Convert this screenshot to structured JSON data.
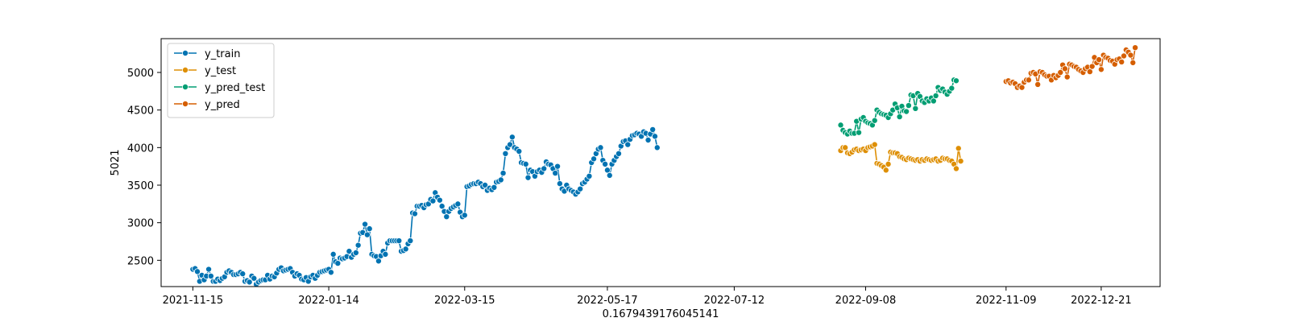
{
  "chart_data": {
    "type": "line",
    "xlabel": "0.1679439176045141",
    "ylabel": "5021",
    "x_axis": "date",
    "xlim": [
      "2021-11-01",
      "2023-01-16"
    ],
    "ylim": [
      2150,
      5450
    ],
    "xticks": [
      "2021-11-15",
      "2022-01-14",
      "2022-03-15",
      "2022-05-17",
      "2022-07-12",
      "2022-09-08",
      "2022-11-09",
      "2022-12-21"
    ],
    "yticks": [
      2500,
      3000,
      3500,
      4000,
      4500,
      5000
    ],
    "grid": false,
    "legend_position": "top-left",
    "series": [
      {
        "name": "y_train",
        "color": "#0173b2",
        "start": "2021-11-15",
        "values": [
          2380,
          2390,
          2350,
          2220,
          2300,
          2240,
          2290,
          2380,
          2290,
          2220,
          2220,
          2250,
          2230,
          2260,
          2280,
          2340,
          2360,
          2340,
          2310,
          2310,
          2320,
          2340,
          2320,
          2220,
          2230,
          2210,
          2290,
          2260,
          2180,
          2210,
          2230,
          2240,
          2240,
          2300,
          2250,
          2290,
          2280,
          2330,
          2380,
          2400,
          2360,
          2370,
          2380,
          2390,
          2340,
          2290,
          2320,
          2300,
          2250,
          2240,
          2270,
          2220,
          2280,
          2300,
          2260,
          2300,
          2340,
          2350,
          2360,
          2370,
          2380,
          2340,
          2580,
          2480,
          2460,
          2530,
          2520,
          2530,
          2550,
          2620,
          2540,
          2580,
          2600,
          2700,
          2860,
          2870,
          2980,
          2840,
          2920,
          2580,
          2560,
          2550,
          2490,
          2560,
          2620,
          2580,
          2730,
          2760,
          2760,
          2760,
          2760,
          2760,
          2620,
          2630,
          2650,
          2720,
          2760,
          3130,
          3120,
          3220,
          3220,
          3230,
          3200,
          3240,
          3250,
          3310,
          3290,
          3400,
          3340,
          3300,
          3220,
          3150,
          3080,
          3150,
          3190,
          3210,
          3230,
          3250,
          3140,
          3080,
          3100,
          3480,
          3490,
          3510,
          3520,
          3520,
          3540,
          3520,
          3480,
          3500,
          3430,
          3460,
          3440,
          3470,
          3540,
          3550,
          3570,
          3660,
          3920,
          4000,
          4040,
          4140,
          4000,
          3980,
          3950,
          3800,
          3790,
          3780,
          3600,
          3700,
          3680,
          3620,
          3680,
          3700,
          3670,
          3720,
          3810,
          3780,
          3770,
          3720,
          3660,
          3750,
          3520,
          3450,
          3420,
          3500,
          3450,
          3430,
          3410,
          3380,
          3410,
          3450,
          3520,
          3540,
          3580,
          3620,
          3800,
          3850,
          3920,
          3980,
          4000,
          3830,
          3780,
          3700,
          3630,
          3780,
          3830,
          3880,
          3920,
          4020,
          4080,
          4090,
          4040,
          4110,
          4160,
          4170,
          4190,
          4180,
          4150,
          4210,
          4190,
          4100,
          4180,
          4240,
          4150,
          4000
        ]
      },
      {
        "name": "y_test",
        "color": "#de8f05",
        "start": "2022-08-28",
        "values": [
          3960,
          4000,
          4000,
          3930,
          3920,
          3940,
          3970,
          3980,
          3960,
          3970,
          3980,
          3960,
          4000,
          4010,
          4020,
          4040,
          3790,
          3780,
          3760,
          3740,
          3700,
          3780,
          3940,
          3930,
          3930,
          3920,
          3880,
          3870,
          3850,
          3840,
          3860,
          3850,
          3840,
          3830,
          3840,
          3820,
          3840,
          3830,
          3850,
          3840,
          3830,
          3840,
          3850,
          3820,
          3830,
          3860,
          3850,
          3850,
          3830,
          3820,
          3780,
          3720,
          3990,
          3820
        ]
      },
      {
        "name": "y_pred_test",
        "color": "#029e73",
        "start": "2022-08-28",
        "values": [
          4300,
          4230,
          4200,
          4180,
          4220,
          4190,
          4190,
          4350,
          4200,
          4380,
          4400,
          4350,
          4330,
          4320,
          4300,
          4360,
          4500,
          4470,
          4450,
          4440,
          4430,
          4400,
          4450,
          4500,
          4580,
          4530,
          4410,
          4550,
          4490,
          4480,
          4560,
          4700,
          4690,
          4520,
          4720,
          4680,
          4620,
          4600,
          4650,
          4620,
          4660,
          4620,
          4690,
          4800,
          4760,
          4780,
          4740,
          4710,
          4750,
          4790,
          4900,
          4890
        ]
      },
      {
        "name": "y_pred",
        "color": "#d55e00",
        "start": "2022-11-09",
        "values": [
          4880,
          4890,
          4860,
          4870,
          4850,
          4800,
          4820,
          4800,
          4870,
          4900,
          4900,
          4990,
          5000,
          4980,
          4840,
          5010,
          5000,
          4970,
          4950,
          4950,
          4900,
          4960,
          4930,
          4960,
          5000,
          5100,
          5050,
          4940,
          5110,
          5100,
          5080,
          5070,
          5040,
          5020,
          5000,
          5050,
          5070,
          5010,
          5080,
          5200,
          5130,
          5170,
          5040,
          5230,
          5200,
          5190,
          5160,
          5150,
          5110,
          5170,
          5180,
          5140,
          5220,
          5300,
          5270,
          5230,
          5130,
          5330
        ]
      }
    ]
  }
}
